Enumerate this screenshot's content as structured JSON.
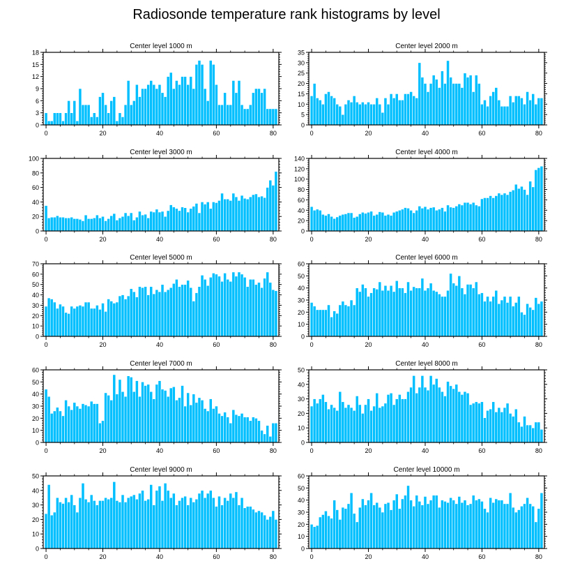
{
  "title": "Radiosonde temperature rank histograms by level",
  "colors": {
    "bar": "#00BFFF",
    "bar_edge": "#ffffff",
    "axis": "#000000"
  },
  "chart_data": [
    {
      "type": "bar",
      "title": "Center level 1000 m",
      "xlim": [
        -1,
        82
      ],
      "ylim": [
        0,
        18
      ],
      "xticks": [
        0,
        20,
        40,
        60,
        80
      ],
      "yticks": [
        0,
        3,
        6,
        9,
        12,
        15,
        18
      ],
      "x_start": 0,
      "values": [
        3,
        1,
        1,
        3,
        3,
        3,
        1,
        3,
        6,
        3,
        6,
        1,
        9,
        5,
        5,
        5,
        2,
        3,
        2,
        7,
        8,
        5,
        3,
        6,
        7,
        1,
        3,
        2,
        5,
        11,
        5,
        6,
        10,
        7,
        9,
        9,
        10,
        11,
        10,
        9,
        10,
        8,
        7,
        12,
        13,
        9,
        11,
        10,
        12,
        12,
        10,
        12,
        9,
        15,
        16,
        15,
        9,
        6,
        16,
        15,
        10,
        5,
        5,
        8,
        5,
        5,
        11,
        8,
        11,
        5,
        4,
        4,
        5,
        8,
        9,
        9,
        8,
        9,
        4,
        4,
        4,
        4
      ]
    },
    {
      "type": "bar",
      "title": "Center level 2000 m",
      "xlim": [
        -1,
        82
      ],
      "ylim": [
        0,
        35
      ],
      "xticks": [
        0,
        20,
        40,
        60,
        80
      ],
      "yticks": [
        0,
        5,
        10,
        15,
        20,
        25,
        30,
        35
      ],
      "x_start": 0,
      "values": [
        14,
        20,
        13,
        12,
        10,
        15,
        16,
        14,
        13,
        10,
        9,
        5,
        10,
        12,
        11,
        14,
        11,
        10,
        11,
        10,
        11,
        10,
        10,
        13,
        10,
        6,
        13,
        10,
        15,
        13,
        15,
        12,
        12,
        15,
        15,
        16,
        14,
        13,
        30,
        23,
        20,
        16,
        20,
        24,
        22,
        18,
        26,
        20,
        31,
        23,
        20,
        20,
        20,
        18,
        25,
        23,
        24,
        16,
        24,
        20,
        10,
        12,
        9,
        14,
        16,
        18,
        12,
        9,
        9,
        9,
        14,
        11,
        14,
        14,
        13,
        10,
        16,
        12,
        15,
        10,
        13,
        13
      ]
    },
    {
      "type": "bar",
      "title": "Center level 3000 m",
      "xlim": [
        -1,
        82
      ],
      "ylim": [
        0,
        100
      ],
      "xticks": [
        0,
        20,
        40,
        60,
        80
      ],
      "yticks": [
        0,
        20,
        40,
        60,
        80,
        100
      ],
      "x_start": 0,
      "values": [
        35,
        18,
        19,
        19,
        21,
        19,
        19,
        18,
        18,
        19,
        17,
        17,
        16,
        14,
        22,
        17,
        17,
        18,
        22,
        18,
        20,
        14,
        17,
        21,
        24,
        15,
        18,
        20,
        25,
        21,
        25,
        15,
        19,
        27,
        22,
        23,
        18,
        27,
        26,
        30,
        26,
        27,
        20,
        28,
        36,
        33,
        31,
        28,
        33,
        32,
        26,
        31,
        34,
        38,
        25,
        40,
        37,
        40,
        31,
        40,
        39,
        42,
        52,
        44,
        44,
        42,
        52,
        47,
        42,
        49,
        45,
        44,
        47,
        50,
        51,
        47,
        48,
        46,
        60,
        70,
        63,
        82
      ]
    },
    {
      "type": "bar",
      "title": "Center level 4000 m",
      "xlim": [
        -1,
        82
      ],
      "ylim": [
        0,
        140
      ],
      "xticks": [
        0,
        20,
        40,
        60,
        80
      ],
      "yticks": [
        0,
        20,
        40,
        60,
        80,
        100,
        120,
        140
      ],
      "x_start": 0,
      "values": [
        47,
        40,
        42,
        40,
        32,
        30,
        33,
        28,
        24,
        27,
        30,
        32,
        33,
        35,
        35,
        26,
        28,
        33,
        36,
        34,
        36,
        38,
        30,
        32,
        37,
        36,
        30,
        32,
        30,
        36,
        38,
        40,
        42,
        45,
        44,
        40,
        35,
        40,
        48,
        44,
        47,
        42,
        45,
        46,
        40,
        42,
        45,
        38,
        50,
        46,
        45,
        48,
        52,
        50,
        55,
        55,
        52,
        55,
        50,
        48,
        62,
        64,
        64,
        68,
        64,
        68,
        73,
        70,
        73,
        70,
        76,
        79,
        90,
        82,
        86,
        80,
        70,
        96,
        85,
        118,
        122,
        125
      ]
    },
    {
      "type": "bar",
      "title": "Center level 5000 m",
      "xlim": [
        -1,
        82
      ],
      "ylim": [
        0,
        70
      ],
      "xticks": [
        0,
        20,
        40,
        60,
        80
      ],
      "yticks": [
        0,
        10,
        20,
        30,
        40,
        50,
        60,
        70
      ],
      "x_start": 0,
      "values": [
        29,
        37,
        36,
        33,
        27,
        31,
        29,
        23,
        22,
        29,
        27,
        29,
        30,
        29,
        33,
        33,
        27,
        27,
        30,
        26,
        32,
        24,
        36,
        34,
        32,
        33,
        39,
        40,
        36,
        39,
        46,
        43,
        38,
        48,
        47,
        48,
        40,
        48,
        41,
        45,
        43,
        50,
        43,
        45,
        47,
        51,
        55,
        48,
        50,
        50,
        54,
        47,
        34,
        42,
        48,
        59,
        55,
        49,
        57,
        61,
        60,
        58,
        53,
        61,
        55,
        53,
        62,
        58,
        62,
        60,
        57,
        48,
        55,
        55,
        50,
        52,
        47,
        56,
        62,
        52,
        45,
        44
      ]
    },
    {
      "type": "bar",
      "title": "Center level 6000 m",
      "xlim": [
        -1,
        82
      ],
      "ylim": [
        0,
        60
      ],
      "xticks": [
        0,
        20,
        40,
        60,
        80
      ],
      "yticks": [
        0,
        10,
        20,
        30,
        40,
        50,
        60
      ],
      "x_start": 0,
      "values": [
        28,
        25,
        22,
        22,
        22,
        22,
        26,
        16,
        21,
        19,
        26,
        29,
        26,
        25,
        30,
        26,
        40,
        37,
        43,
        40,
        33,
        36,
        40,
        39,
        45,
        38,
        42,
        38,
        42,
        37,
        46,
        40,
        40,
        36,
        45,
        38,
        41,
        40,
        40,
        48,
        38,
        40,
        44,
        38,
        37,
        35,
        33,
        33,
        38,
        52,
        44,
        42,
        50,
        40,
        35,
        43,
        43,
        40,
        45,
        35,
        36,
        29,
        33,
        29,
        33,
        38,
        27,
        30,
        33,
        28,
        33,
        25,
        28,
        33,
        20,
        18,
        27,
        24,
        22,
        32,
        27,
        29
      ]
    },
    {
      "type": "bar",
      "title": "Center level 7000 m",
      "xlim": [
        -1,
        82
      ],
      "ylim": [
        0,
        60
      ],
      "xticks": [
        0,
        20,
        40,
        60,
        80
      ],
      "yticks": [
        0,
        10,
        20,
        30,
        40,
        50,
        60
      ],
      "x_start": 0,
      "values": [
        44,
        38,
        24,
        26,
        29,
        26,
        22,
        35,
        30,
        27,
        33,
        30,
        28,
        32,
        31,
        30,
        34,
        32,
        32,
        16,
        18,
        41,
        39,
        35,
        56,
        40,
        52,
        42,
        38,
        55,
        54,
        42,
        51,
        38,
        50,
        47,
        48,
        42,
        36,
        48,
        51,
        44,
        43,
        38,
        45,
        46,
        35,
        37,
        47,
        30,
        41,
        31,
        40,
        33,
        37,
        35,
        28,
        26,
        36,
        28,
        30,
        24,
        22,
        25,
        21,
        16,
        27,
        23,
        22,
        24,
        21,
        21,
        18,
        21,
        20,
        18,
        10,
        7,
        14,
        5,
        16,
        16
      ]
    },
    {
      "type": "bar",
      "title": "Center level 8000 m",
      "xlim": [
        -1,
        82
      ],
      "ylim": [
        0,
        50
      ],
      "xticks": [
        0,
        20,
        40,
        60,
        80
      ],
      "yticks": [
        0,
        10,
        20,
        30,
        40,
        50
      ],
      "x_start": 0,
      "values": [
        25,
        30,
        27,
        30,
        33,
        28,
        23,
        26,
        24,
        22,
        35,
        28,
        24,
        26,
        24,
        22,
        32,
        26,
        20,
        26,
        30,
        22,
        25,
        34,
        24,
        25,
        27,
        33,
        34,
        26,
        30,
        33,
        30,
        30,
        35,
        38,
        46,
        34,
        38,
        46,
        38,
        36,
        46,
        40,
        44,
        38,
        35,
        32,
        42,
        39,
        37,
        40,
        35,
        33,
        35,
        34,
        26,
        27,
        28,
        27,
        28,
        17,
        22,
        23,
        28,
        21,
        24,
        21,
        24,
        27,
        20,
        18,
        23,
        14,
        11,
        18,
        12,
        12,
        10,
        14,
        14,
        9
      ]
    },
    {
      "type": "bar",
      "title": "Center level 9000 m",
      "xlim": [
        -1,
        82
      ],
      "ylim": [
        0,
        50
      ],
      "xticks": [
        0,
        20,
        40,
        60,
        80
      ],
      "yticks": [
        0,
        10,
        20,
        30,
        40,
        50
      ],
      "x_start": 0,
      "values": [
        24,
        44,
        23,
        25,
        35,
        32,
        31,
        35,
        32,
        37,
        30,
        25,
        35,
        45,
        34,
        32,
        37,
        33,
        30,
        33,
        33,
        35,
        34,
        35,
        46,
        33,
        32,
        37,
        32,
        35,
        36,
        37,
        34,
        38,
        40,
        33,
        34,
        44,
        30,
        40,
        43,
        33,
        45,
        40,
        35,
        38,
        30,
        33,
        35,
        36,
        30,
        35,
        32,
        34,
        38,
        40,
        35,
        38,
        40,
        35,
        29,
        36,
        30,
        35,
        33,
        38,
        35,
        39,
        30,
        35,
        28,
        29,
        29,
        27,
        25,
        26,
        25,
        23,
        20,
        22,
        26,
        20
      ]
    },
    {
      "type": "bar",
      "title": "Center level 10000 m",
      "xlim": [
        -1,
        82
      ],
      "ylim": [
        0,
        60
      ],
      "xticks": [
        0,
        20,
        40,
        60,
        80
      ],
      "yticks": [
        0,
        10,
        20,
        30,
        40,
        50,
        60
      ],
      "x_start": 0,
      "values": [
        20,
        18,
        19,
        26,
        28,
        31,
        27,
        25,
        40,
        32,
        24,
        34,
        33,
        37,
        46,
        29,
        22,
        34,
        41,
        36,
        40,
        46,
        36,
        38,
        34,
        30,
        37,
        38,
        32,
        40,
        45,
        33,
        41,
        44,
        52,
        40,
        35,
        44,
        39,
        36,
        43,
        37,
        40,
        44,
        44,
        34,
        40,
        39,
        38,
        42,
        40,
        37,
        43,
        38,
        40,
        36,
        37,
        44,
        40,
        41,
        39,
        33,
        30,
        42,
        38,
        41,
        40,
        40,
        37,
        37,
        46,
        34,
        30,
        32,
        35,
        37,
        42,
        37,
        35,
        22,
        33,
        46
      ]
    }
  ]
}
